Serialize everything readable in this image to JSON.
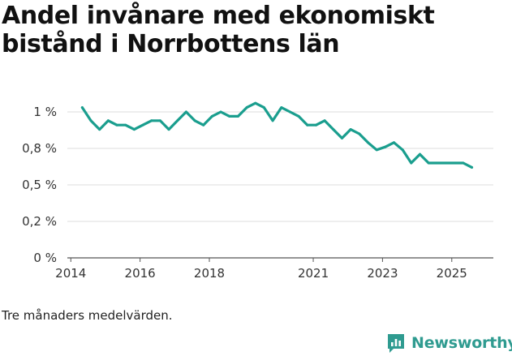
{
  "title": "Andel invånare med ekonomiskt bistånd i Norrbottens län",
  "caption": "Tre månaders medelvärden.",
  "brand": {
    "name": "Newsworthy",
    "icon": "newsworthy-logo-icon",
    "color": "#2f9b90"
  },
  "colors": {
    "line": "#1a9e8e",
    "grid": "#dddddd",
    "axis": "#555555"
  },
  "chart_data": {
    "type": "line",
    "title": "Andel invånare med ekonomiskt bistånd i Norrbottens län",
    "xlabel": "",
    "ylabel": "",
    "x_ticks": [
      {
        "value": 2014,
        "label": "2014"
      },
      {
        "value": 2016,
        "label": "2016"
      },
      {
        "value": 2018,
        "label": "2018"
      },
      {
        "value": 2021,
        "label": "2021"
      },
      {
        "value": 2023,
        "label": "2023"
      },
      {
        "value": 2025,
        "label": "2025"
      }
    ],
    "y_ticks": [
      {
        "value": 0,
        "label": "0 %"
      },
      {
        "value": 0.25,
        "label": "0,2 %"
      },
      {
        "value": 0.5,
        "label": "0,5 %"
      },
      {
        "value": 0.75,
        "label": "0,8 %"
      },
      {
        "value": 1,
        "label": "1 %"
      }
    ],
    "xlim": [
      2013.9,
      2026.2
    ],
    "ylim": [
      0,
      1.1
    ],
    "series": [
      {
        "name": "Andel invånare med ekonomiskt bistånd",
        "x": [
          2014.33,
          2014.58,
          2014.83,
          2015.08,
          2015.33,
          2015.58,
          2015.83,
          2016.08,
          2016.33,
          2016.58,
          2016.83,
          2017.08,
          2017.33,
          2017.58,
          2017.83,
          2018.08,
          2018.33,
          2018.58,
          2018.83,
          2019.08,
          2019.33,
          2019.58,
          2019.83,
          2020.08,
          2020.33,
          2020.58,
          2020.83,
          2021.08,
          2021.33,
          2021.58,
          2021.83,
          2022.08,
          2022.33,
          2022.58,
          2022.83,
          2023.08,
          2023.33,
          2023.58,
          2023.83,
          2024.08,
          2024.33,
          2024.58,
          2024.83,
          2025.08,
          2025.33,
          2025.58
        ],
        "values": [
          1.03,
          0.94,
          0.88,
          0.94,
          0.91,
          0.91,
          0.88,
          0.91,
          0.94,
          0.94,
          0.88,
          0.94,
          1.0,
          0.94,
          0.91,
          0.97,
          1.0,
          0.97,
          0.97,
          1.03,
          1.06,
          1.03,
          0.94,
          1.03,
          1.0,
          0.97,
          0.91,
          0.91,
          0.94,
          0.88,
          0.82,
          0.88,
          0.85,
          0.79,
          0.74,
          0.76,
          0.79,
          0.74,
          0.65,
          0.71,
          0.65,
          0.65,
          0.65,
          0.65,
          0.65,
          0.62
        ]
      }
    ]
  }
}
